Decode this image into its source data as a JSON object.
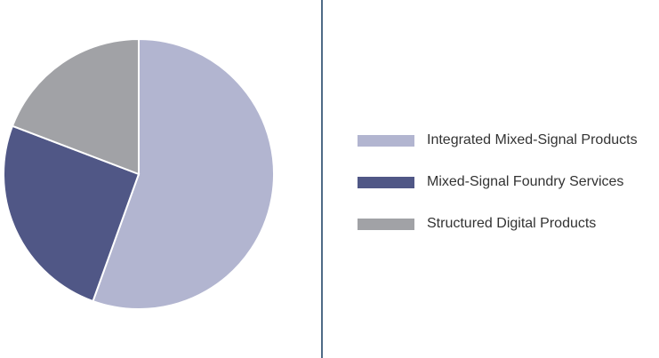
{
  "chart_data": {
    "type": "pie",
    "title": "",
    "series": [
      {
        "slices": [
          {
            "label": "Integrated Mixed-Signal Products",
            "value": 55.5,
            "color": "#b2b5d0"
          },
          {
            "label": "Mixed-Signal Foundry Services",
            "value": 25.3,
            "color": "#505786"
          },
          {
            "label": "Structured Digital Products",
            "value": 19.2,
            "color": "#a1a2a6"
          }
        ]
      }
    ],
    "start_angle_deg": 0,
    "direction": "clockwise",
    "legend": {
      "placement": "right",
      "items": [
        {
          "label": "Integrated Mixed-Signal Products",
          "color": "#b2b5d0"
        },
        {
          "label": "Mixed-Signal Foundry Services",
          "color": "#505786"
        },
        {
          "label": "Structured Digital Products",
          "color": "#a1a2a6"
        }
      ]
    },
    "divider_color": "#4f6b86"
  }
}
